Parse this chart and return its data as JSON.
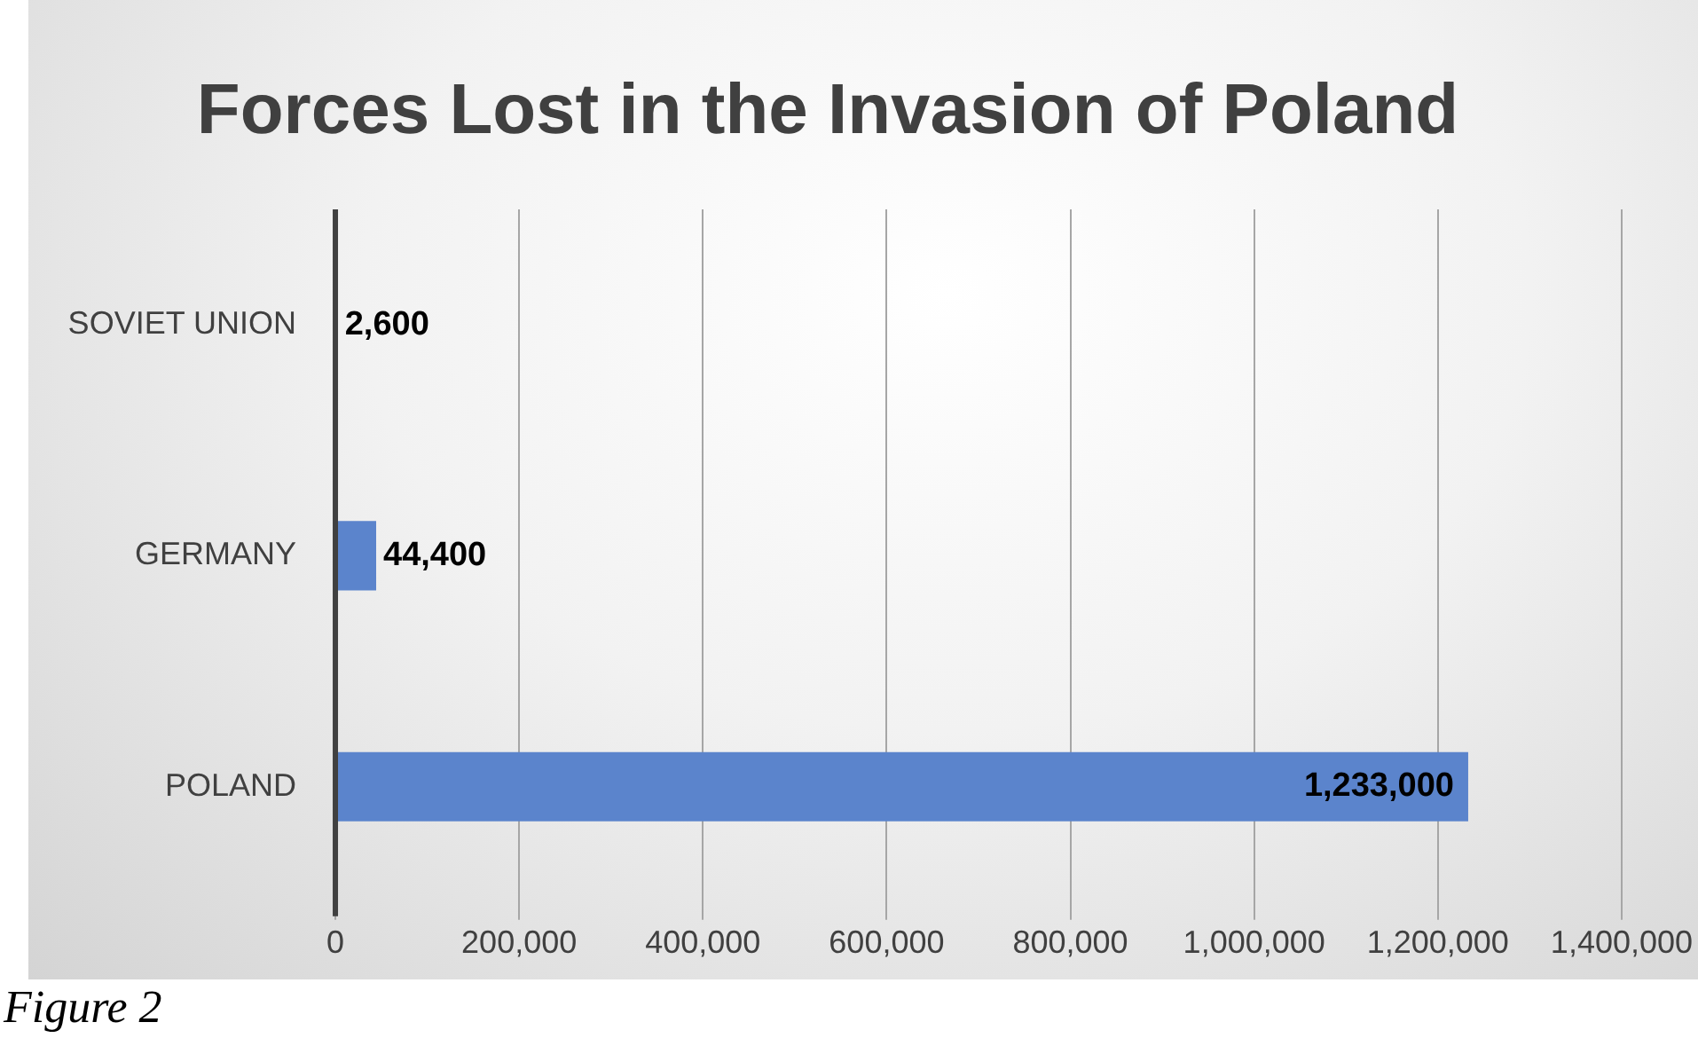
{
  "chart_data": {
    "type": "bar",
    "orientation": "horizontal",
    "title": "Forces Lost in the Invasion of Poland",
    "categories": [
      "SOVIET UNION",
      "GERMANY",
      "POLAND"
    ],
    "values": [
      2600,
      44400,
      1233000
    ],
    "value_labels": [
      "2,600",
      "44,400",
      "1,233,000"
    ],
    "color": "#5b84cc",
    "xlim": [
      0,
      1400000
    ],
    "xticks": [
      {
        "value": 0,
        "label": "0"
      },
      {
        "value": 200000,
        "label": "200,000"
      },
      {
        "value": 400000,
        "label": "400,000"
      },
      {
        "value": 600000,
        "label": "600,000"
      },
      {
        "value": 800000,
        "label": "800,000"
      },
      {
        "value": 1000000,
        "label": "1,000,000"
      },
      {
        "value": 1200000,
        "label": "1,200,000"
      },
      {
        "value": 1400000,
        "label": "1,400,000"
      }
    ],
    "grid": "x",
    "legend": false,
    "annotations": [
      "Figure 2"
    ]
  }
}
